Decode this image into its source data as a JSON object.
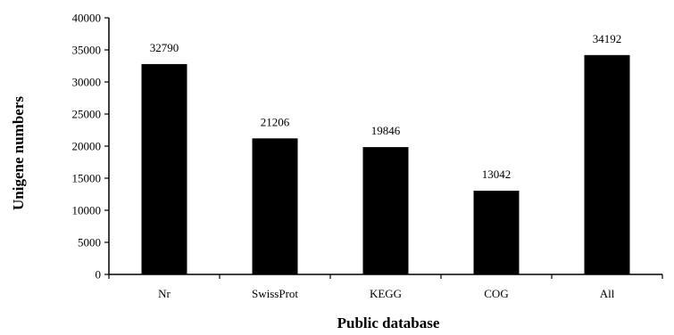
{
  "chart_data": {
    "type": "bar",
    "categories": [
      "Nr",
      "SwissProt",
      "KEGG",
      "COG",
      "All"
    ],
    "values": [
      32790,
      21206,
      19846,
      13042,
      34192
    ],
    "data_labels": [
      "32790",
      "21206",
      "19846",
      "13042",
      "34192"
    ],
    "xlabel": "Public database",
    "ylabel": "Unigene numbers",
    "ylim": [
      0,
      40000
    ],
    "yticks": [
      0,
      5000,
      10000,
      15000,
      20000,
      25000,
      30000,
      35000,
      40000
    ],
    "ytick_labels": [
      "0",
      "5000",
      "10000",
      "15000",
      "20000",
      "25000",
      "30000",
      "35000",
      "40000"
    ],
    "grid": false,
    "bar_color": "#000000"
  }
}
